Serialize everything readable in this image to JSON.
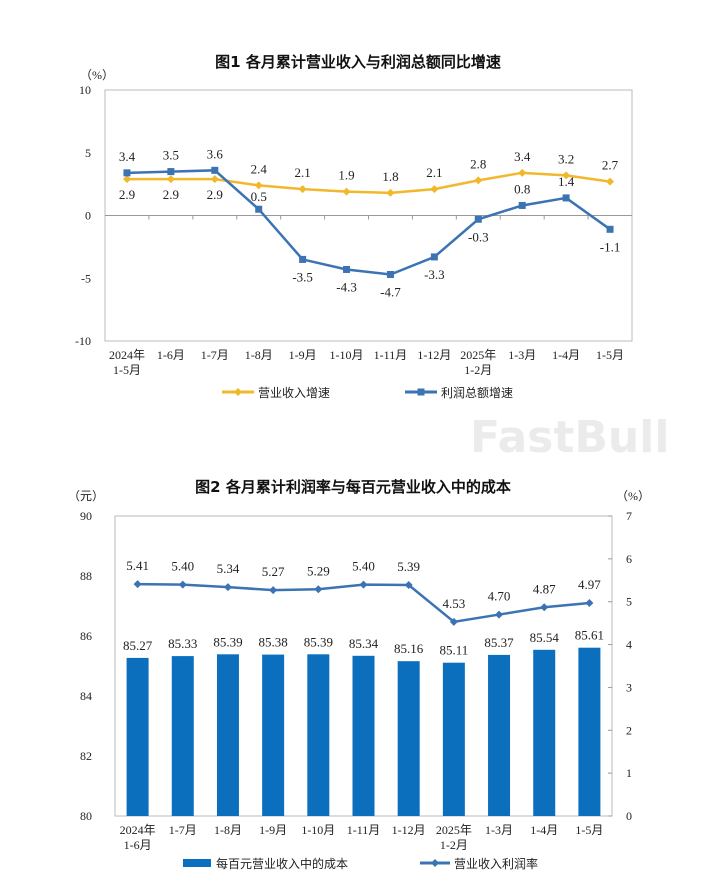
{
  "chart_data": [
    {
      "type": "line",
      "title": "图1  各月累计营业收入与利润总额同比增速",
      "ylabel": "（%）",
      "ylim": [
        -10,
        10
      ],
      "yticks": [
        10,
        5,
        0,
        -5,
        -10
      ],
      "categories": [
        [
          "2024年",
          "1-5月"
        ],
        [
          "1-6月"
        ],
        [
          "1-7月"
        ],
        [
          "1-8月"
        ],
        [
          "1-9月"
        ],
        [
          "1-10月"
        ],
        [
          "1-11月"
        ],
        [
          "1-12月"
        ],
        [
          "2025年",
          "1-2月"
        ],
        [
          "1-3月"
        ],
        [
          "1-4月"
        ],
        [
          "1-5月"
        ]
      ],
      "grid": false,
      "legend_position": "bottom",
      "series": [
        {
          "name": "营业收入增速",
          "color": "#F2B82B",
          "marker": "diamond",
          "values": [
            2.9,
            2.9,
            2.9,
            2.4,
            2.1,
            1.9,
            1.8,
            2.1,
            2.8,
            3.4,
            3.2,
            2.7
          ]
        },
        {
          "name": "利润总额增速",
          "color": "#3B73B3",
          "marker": "square",
          "values": [
            3.4,
            3.5,
            3.6,
            0.5,
            -3.5,
            -4.3,
            -4.7,
            -3.3,
            -0.3,
            0.8,
            1.4,
            -1.1
          ]
        }
      ]
    },
    {
      "type": "bar+line",
      "title": "图2  各月累计利润率与每百元营业收入中的成本",
      "ylabel_left": "（元）",
      "ylabel_right": "（%）",
      "ylim_left": [
        80,
        90
      ],
      "ylim_right": [
        0,
        7
      ],
      "yticks_left": [
        90,
        88,
        86,
        84,
        82,
        80
      ],
      "yticks_right": [
        7,
        6,
        5,
        4,
        3,
        2,
        1,
        0
      ],
      "categories": [
        [
          "2024年",
          "1-6月"
        ],
        [
          "1-7月"
        ],
        [
          "1-8月"
        ],
        [
          "1-9月"
        ],
        [
          "1-10月"
        ],
        [
          "1-11月"
        ],
        [
          "1-12月"
        ],
        [
          "2025年",
          "1-2月"
        ],
        [
          "1-3月"
        ],
        [
          "1-4月"
        ],
        [
          "1-5月"
        ]
      ],
      "grid": false,
      "legend_position": "bottom",
      "series": [
        {
          "name": "每百元营业收入中的成本",
          "type": "bar",
          "axis": "left",
          "color": "#0B6FBE",
          "values": [
            85.27,
            85.33,
            85.39,
            85.38,
            85.39,
            85.34,
            85.16,
            85.11,
            85.37,
            85.54,
            85.61
          ]
        },
        {
          "name": "营业收入利润率",
          "type": "line",
          "axis": "right",
          "color": "#3B73B3",
          "marker": "diamond",
          "values": [
            5.41,
            5.4,
            5.34,
            5.27,
            5.29,
            5.4,
            5.39,
            4.53,
            4.7,
            4.87,
            4.97
          ]
        }
      ]
    }
  ],
  "watermark": "FastBull"
}
